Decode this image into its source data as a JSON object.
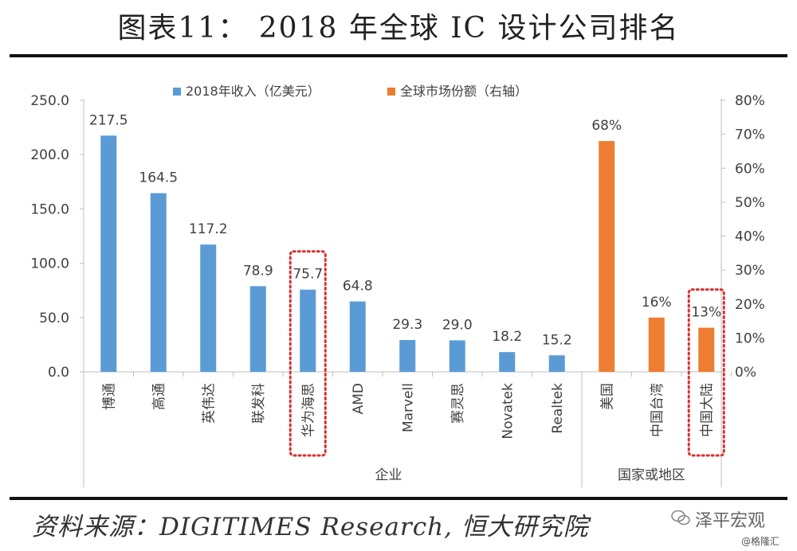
{
  "page": {
    "title": "图表11： 2018 年全球 IC 设计公司排名",
    "source": "资料来源：DIGITIMES Research, 恒大研究院",
    "watermark_main": "泽平宏观",
    "watermark_sub": "@格隆汇"
  },
  "chart_data": {
    "type": "bar",
    "legend_position": "top",
    "series": [
      {
        "name": "2018年收入（亿美元）",
        "axis": "left",
        "color": "#5b9bd5",
        "categories": [
          "博通",
          "高通",
          "英伟达",
          "联发科",
          "华为海思",
          "AMD",
          "Marvell",
          "赛灵思",
          "Novatek",
          "Realtek"
        ],
        "values": [
          217.5,
          164.5,
          117.2,
          78.9,
          75.7,
          64.8,
          29.3,
          29.0,
          18.2,
          15.2
        ],
        "labels": [
          "217.5",
          "164.5",
          "117.2",
          "78.9",
          "75.7",
          "64.8",
          "29.3",
          "29.0",
          "18.2",
          "15.2"
        ]
      },
      {
        "name": "全球市场份额（右轴）",
        "axis": "right",
        "color": "#ed7d31",
        "categories": [
          "美国",
          "中国台湾",
          "中国大陆"
        ],
        "values": [
          68,
          16,
          13
        ],
        "labels": [
          "68%",
          "16%",
          "13%"
        ]
      }
    ],
    "y_left": {
      "range": [
        0,
        250
      ],
      "ticks": [
        "0.0",
        "50.0",
        "100.0",
        "150.0",
        "200.0",
        "250.0"
      ]
    },
    "y_right": {
      "range": [
        0,
        80
      ],
      "ticks": [
        "0%",
        "10%",
        "20%",
        "30%",
        "40%",
        "50%",
        "60%",
        "70%",
        "80%"
      ]
    },
    "groups": [
      {
        "label": "企业",
        "series_index": 0
      },
      {
        "label": "国家或地区",
        "series_index": 1
      }
    ],
    "highlighted": [
      "华为海思",
      "中国大陆"
    ],
    "highlight_color": "#d93030",
    "axis_color": "#bfbfbf",
    "text_color": "#404040",
    "grid": false
  }
}
